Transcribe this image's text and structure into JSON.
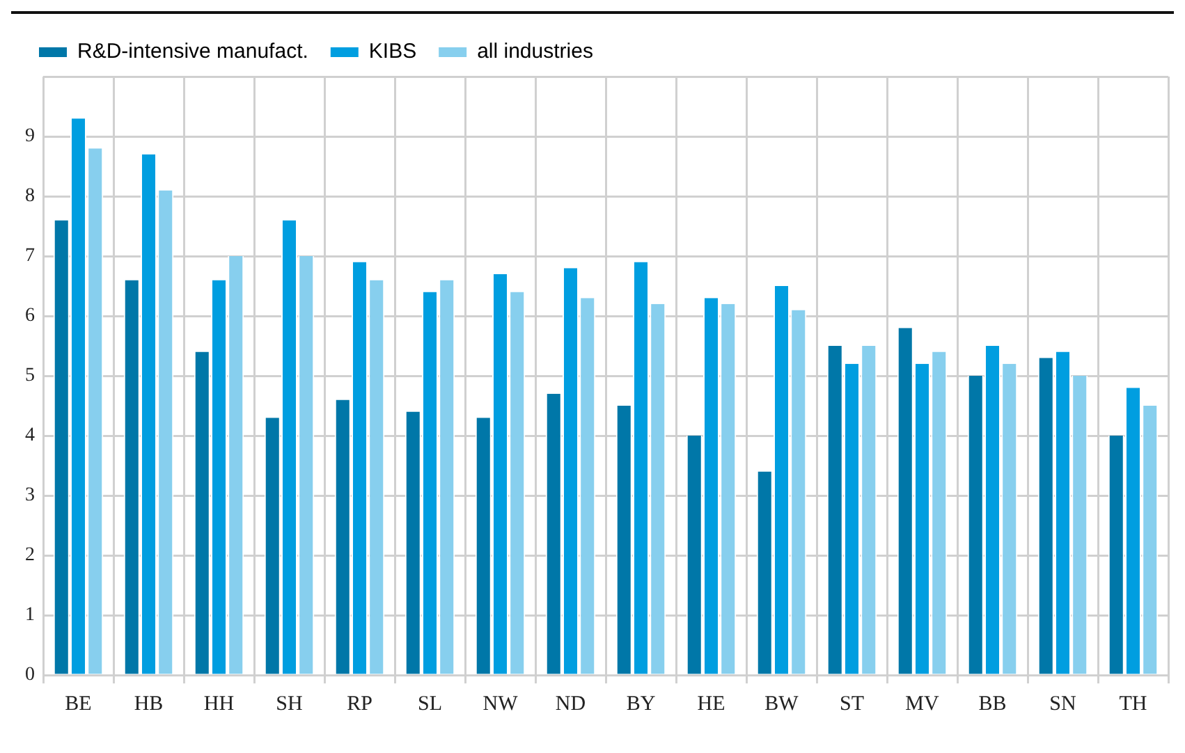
{
  "chart_data": {
    "type": "bar",
    "categories": [
      "BE",
      "HB",
      "HH",
      "SH",
      "RP",
      "SL",
      "NW",
      "ND",
      "BY",
      "HE",
      "BW",
      "ST",
      "MV",
      "BB",
      "SN",
      "TH"
    ],
    "series": [
      {
        "name": "R&D-intensive manufact.",
        "color": "#0077a8",
        "values": [
          7.6,
          6.6,
          5.4,
          4.3,
          4.6,
          4.4,
          4.3,
          4.7,
          4.5,
          4.0,
          3.4,
          5.5,
          5.8,
          5.0,
          5.3,
          4.0
        ]
      },
      {
        "name": "KIBS",
        "color": "#009ee0",
        "values": [
          9.3,
          8.7,
          6.6,
          7.6,
          6.9,
          6.4,
          6.7,
          6.8,
          6.9,
          6.3,
          6.5,
          5.2,
          5.2,
          5.5,
          5.4,
          4.8
        ]
      },
      {
        "name": "all industries",
        "color": "#87cfee",
        "values": [
          8.8,
          8.1,
          7.0,
          7.0,
          6.6,
          6.6,
          6.4,
          6.3,
          6.2,
          6.2,
          6.1,
          5.5,
          5.4,
          5.2,
          5.0,
          4.5
        ]
      }
    ],
    "ylim": [
      0,
      10
    ],
    "yticks": [
      0,
      1,
      2,
      3,
      4,
      5,
      6,
      7,
      8,
      9,
      {
        "value": 10,
        "label": null
      }
    ],
    "grid": true,
    "legend": "top"
  }
}
